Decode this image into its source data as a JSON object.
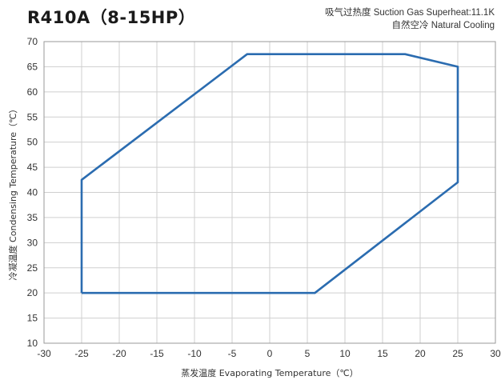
{
  "header": {
    "title": "R410A（8-15HP）",
    "note_line1": "吸气过热度 Suction Gas Superheat:11.1K",
    "note_line2": "自然空冷  Natural Cooling"
  },
  "chart_data": {
    "type": "line",
    "title": "R410A（8-15HP）",
    "xlabel": "蒸发温度 Evaporating Temperature（℃）",
    "ylabel": "冷凝温度 Condensing Temperature（℃）",
    "xlim": [
      -30,
      30
    ],
    "ylim": [
      10,
      70
    ],
    "x_ticks": [
      -30,
      -25,
      -20,
      -15,
      -10,
      -5,
      0,
      5,
      10,
      15,
      20,
      25,
      30
    ],
    "y_ticks": [
      10,
      15,
      20,
      25,
      30,
      35,
      40,
      45,
      50,
      55,
      60,
      65,
      70
    ],
    "grid": true,
    "line_color": "#2b6cb0",
    "series": [
      {
        "points": [
          [
            -25,
            20
          ],
          [
            6,
            20
          ],
          [
            25,
            42
          ],
          [
            25,
            65
          ],
          [
            18,
            67.5
          ],
          [
            -3,
            67.5
          ],
          [
            -25,
            42.5
          ],
          [
            -25,
            20
          ]
        ]
      }
    ]
  }
}
